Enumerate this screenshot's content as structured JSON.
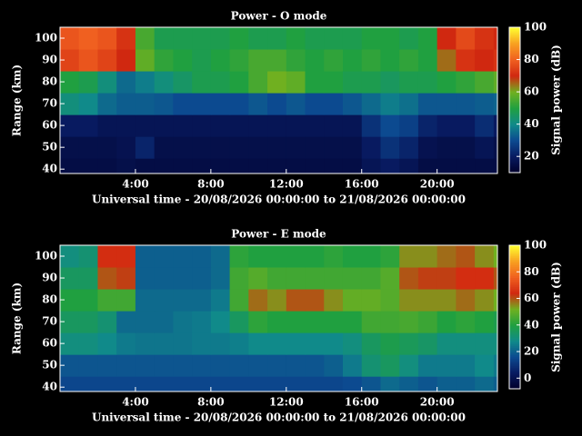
{
  "chart_data": [
    {
      "type": "heatmap",
      "title": "Power - O mode",
      "xlabel": "Universal time - 20/08/2026 00:00:00 to 21/08/2026 00:00:00",
      "ylabel": "Range (km)",
      "colorbar_label": "Signal power (dB)",
      "xlim": [
        0,
        23.2
      ],
      "ylim": [
        38,
        105
      ],
      "xticks": [
        {
          "value": 4,
          "label": "4:00"
        },
        {
          "value": 8,
          "label": "8:00"
        },
        {
          "value": 12,
          "label": "12:00"
        },
        {
          "value": 16,
          "label": "16:00"
        },
        {
          "value": 20,
          "label": "20:00"
        }
      ],
      "yticks": [
        40,
        50,
        60,
        70,
        80,
        90,
        100
      ],
      "zlim": [
        10,
        100
      ],
      "cbticks": [
        20,
        40,
        60,
        80,
        100
      ],
      "colormap": [
        "#00002a",
        "#081a60",
        "#0c4a90",
        "#108a8a",
        "#20a040",
        "#70b020",
        "#d02810",
        "#f06020",
        "#f8a020",
        "#ffff30"
      ],
      "x_bins": [
        0,
        1,
        2,
        3,
        4,
        5,
        6,
        7,
        8,
        9,
        10,
        11,
        12,
        13,
        14,
        15,
        16,
        17,
        18,
        19,
        20,
        21,
        22,
        23,
        23.2
      ],
      "y_bins": [
        38,
        45,
        55,
        65,
        75,
        85,
        95,
        105
      ],
      "z": [
        [
          15,
          15,
          15,
          16,
          15,
          15,
          15,
          15,
          15,
          15,
          15,
          15,
          15,
          15,
          15,
          15,
          18,
          20,
          18,
          15,
          15,
          15,
          15,
          15
        ],
        [
          16,
          16,
          16,
          17,
          22,
          16,
          16,
          16,
          16,
          16,
          16,
          16,
          16,
          16,
          16,
          16,
          20,
          25,
          22,
          17,
          16,
          16,
          18,
          16
        ],
        [
          20,
          20,
          18,
          18,
          18,
          18,
          18,
          18,
          18,
          18,
          18,
          18,
          18,
          18,
          18,
          18,
          25,
          30,
          28,
          22,
          20,
          20,
          24,
          20
        ],
        [
          42,
          40,
          35,
          33,
          33,
          32,
          30,
          30,
          30,
          30,
          32,
          30,
          32,
          30,
          30,
          32,
          35,
          38,
          36,
          32,
          32,
          32,
          33,
          34
        ],
        [
          50,
          48,
          42,
          35,
          38,
          42,
          45,
          48,
          48,
          50,
          55,
          60,
          58,
          50,
          50,
          48,
          48,
          46,
          48,
          48,
          50,
          52,
          55,
          58
        ],
        [
          75,
          78,
          75,
          70,
          58,
          52,
          50,
          48,
          50,
          52,
          55,
          55,
          52,
          50,
          52,
          50,
          52,
          50,
          52,
          50,
          65,
          72,
          70,
          72
        ],
        [
          78,
          80,
          78,
          72,
          55,
          48,
          48,
          48,
          48,
          50,
          48,
          48,
          50,
          48,
          48,
          48,
          50,
          50,
          48,
          50,
          70,
          76,
          72,
          70
        ]
      ]
    },
    {
      "type": "heatmap",
      "title": "Power - E mode",
      "xlabel": "Universal time - 20/08/2026 00:00:00 to 21/08/2026 00:00:00",
      "ylabel": "Range (km)",
      "colorbar_label": "Signal power (dB)",
      "xlim": [
        0,
        23.2
      ],
      "ylim": [
        38,
        105
      ],
      "xticks": [
        {
          "value": 4,
          "label": "4:00"
        },
        {
          "value": 8,
          "label": "8:00"
        },
        {
          "value": 12,
          "label": "12:00"
        },
        {
          "value": 16,
          "label": "16:00"
        },
        {
          "value": 20,
          "label": "20:00"
        }
      ],
      "yticks": [
        40,
        50,
        60,
        70,
        80,
        90,
        100
      ],
      "zlim": [
        -8,
        100
      ],
      "cbticks": [
        0,
        20,
        40,
        60,
        80,
        100
      ],
      "colormap": [
        "#00002a",
        "#081a60",
        "#0c4a90",
        "#108a8a",
        "#20a040",
        "#70b020",
        "#d02810",
        "#f06020",
        "#f8a020",
        "#ffff30"
      ],
      "x_bins": [
        0,
        1,
        2,
        3,
        4,
        5,
        6,
        7,
        8,
        9,
        10,
        11,
        12,
        13,
        14,
        15,
        16,
        17,
        18,
        19,
        20,
        21,
        22,
        23,
        23.2
      ],
      "y_bins": [
        38,
        45,
        55,
        65,
        75,
        85,
        95,
        105
      ],
      "z": [
        [
          15,
          15,
          15,
          15,
          15,
          15,
          15,
          15,
          15,
          15,
          15,
          15,
          15,
          15,
          15,
          16,
          18,
          22,
          20,
          18,
          20,
          20,
          22,
          20
        ],
        [
          18,
          18,
          18,
          18,
          18,
          18,
          18,
          18,
          18,
          18,
          18,
          18,
          18,
          18,
          20,
          25,
          32,
          35,
          30,
          25,
          25,
          25,
          28,
          25
        ],
        [
          30,
          30,
          28,
          25,
          24,
          24,
          24,
          25,
          25,
          26,
          28,
          28,
          28,
          28,
          28,
          30,
          35,
          38,
          36,
          34,
          30,
          30,
          30,
          30
        ],
        [
          35,
          35,
          32,
          22,
          22,
          22,
          24,
          25,
          28,
          35,
          42,
          40,
          40,
          40,
          40,
          40,
          45,
          45,
          46,
          44,
          40,
          42,
          40,
          38
        ],
        [
          40,
          40,
          45,
          45,
          22,
          22,
          22,
          22,
          25,
          45,
          58,
          55,
          60,
          60,
          55,
          50,
          50,
          48,
          55,
          55,
          55,
          58,
          55,
          52
        ],
        [
          35,
          35,
          60,
          62,
          20,
          20,
          20,
          20,
          22,
          45,
          48,
          45,
          45,
          45,
          45,
          45,
          45,
          48,
          60,
          62,
          62,
          65,
          65,
          60
        ],
        [
          30,
          32,
          65,
          65,
          20,
          20,
          20,
          20,
          22,
          42,
          40,
          40,
          40,
          40,
          42,
          40,
          40,
          42,
          55,
          55,
          58,
          60,
          55,
          52
        ]
      ]
    }
  ]
}
